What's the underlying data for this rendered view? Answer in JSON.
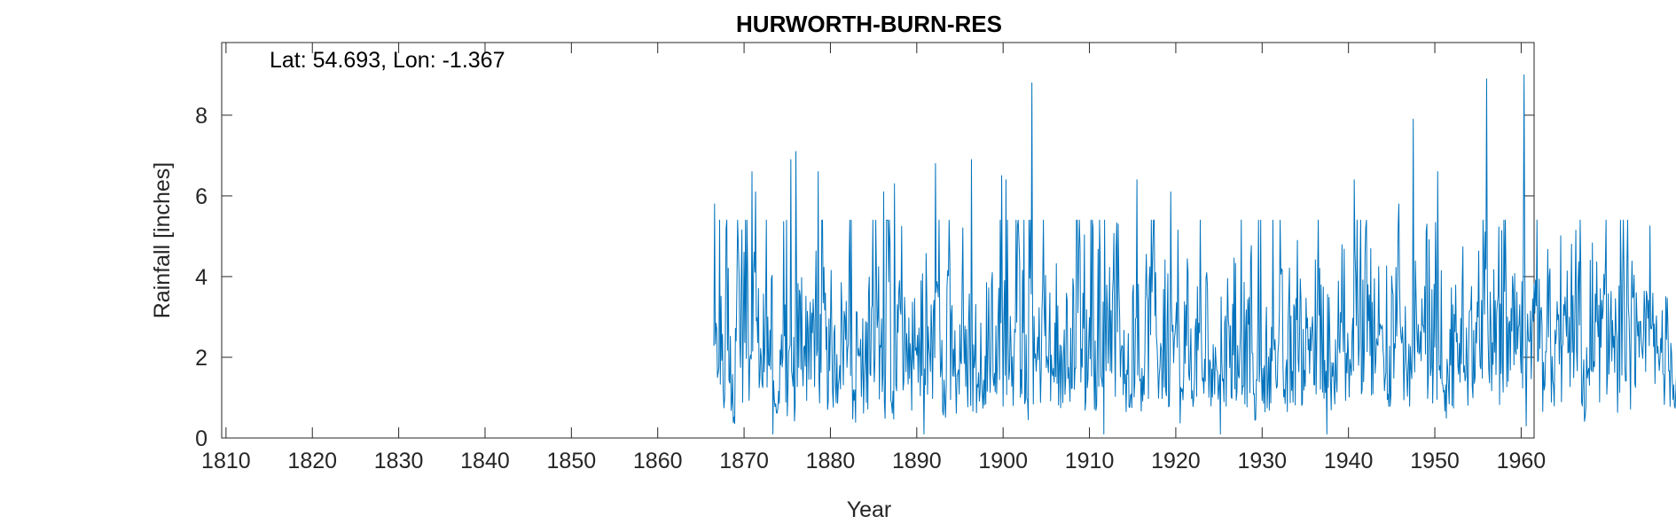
{
  "chart_data": {
    "type": "line",
    "title": "HURWORTH-BURN-RES",
    "annotation": "Lat: 54.693, Lon: -1.367",
    "xlabel": "Year",
    "ylabel": "Rainfall [inches]",
    "xlim": [
      1809.5,
      1961.5
    ],
    "ylim": [
      0,
      9.8
    ],
    "x_ticks": [
      1810,
      1820,
      1830,
      1840,
      1850,
      1860,
      1870,
      1880,
      1890,
      1900,
      1910,
      1920,
      1930,
      1940,
      1950,
      1960
    ],
    "x_tick_labels": [
      "1810",
      "1820",
      "1830",
      "1840",
      "1850",
      "1860",
      "1870",
      "1880",
      "1890",
      "1900",
      "1910",
      "1920",
      "1930",
      "1940",
      "1950",
      "1960"
    ],
    "y_ticks": [
      0,
      2,
      4,
      6,
      8
    ],
    "y_tick_labels": [
      "0",
      "2",
      "4",
      "6",
      "8"
    ],
    "grid": false,
    "line_color": "#0072BD",
    "series": [
      {
        "start_year": 1866.5,
        "step": 0.5,
        "x_units": "year",
        "values": [
          1.9,
          2.7,
          1.3,
          2.9,
          1.0,
          3.8,
          2.4,
          3.3,
          1.4,
          2.8,
          2.4,
          1.6,
          3.5,
          2.1,
          0.6,
          2.2,
          2.2,
          1.4,
          1.1,
          2.5,
          2.8,
          2.3,
          2.9,
          2.1,
          2.1,
          2.6,
          1.8,
          1.8,
          1.9,
          2.5,
          2.5,
          2.6,
          1.0,
          2.1,
          1.2,
          2.0,
          2.5,
          2.9,
          2.7,
          1.1,
          4.2,
          0.8,
          2.4,
          2.1,
          2.3,
          1.9,
          1.4,
          1.7,
          1.8,
          2.5,
          2.0,
          2.5,
          3.3,
          0.8,
          2.7,
          3.1,
          1.6,
          2.5,
          1.8,
          2.1,
          1.6,
          2.6,
          1.1,
          1.9,
          2.1,
          1.9,
          2.4,
          2.1,
          2.9,
          1.8,
          3.2,
          2.4,
          1.1,
          3.4,
          1.7,
          2.1,
          3.3,
          1.7,
          1.5,
          2.1,
          1.5,
          2.2,
          1.7,
          2.7,
          3.4,
          2.4,
          1.5,
          3.4,
          1.5,
          3.3,
          2.5,
          2.4,
          3.3,
          2.9,
          1.7,
          1.1,
          1.9,
          2.5,
          1.6,
          1.8,
          2.5,
          2.8,
          2.4,
          2.0,
          2.3,
          1.8,
          1.9,
          2.3,
          1.0,
          2.5,
          1.2,
          2.1,
          2.3,
          1.6,
          2.7,
          1.5,
          1.4,
          2.2,
          1.6,
          2.1,
          2.3,
          1.4,
          2.4,
          2.1,
          2.2,
          0.9,
          3.2,
          1.3,
          1.4,
          2.4,
          1.5,
          2.6,
          1.2,
          2.2,
          2.2,
          2.4,
          2.1,
          2.3,
          2.7,
          1.8,
          2.6,
          1.6,
          2.5,
          1.3,
          1.6,
          2.1,
          2.5,
          2.0,
          2.5,
          2.6,
          2.7,
          3.1,
          2.1,
          1.8,
          2.4,
          2.5,
          1.6,
          2.7,
          2.6,
          1.7,
          1.5,
          1.7,
          2.8,
          1.8,
          2.1,
          2.3,
          2.4,
          2.7,
          2.7,
          0.8,
          1.7,
          1.9,
          1.5,
          2.5,
          1.8,
          2.3,
          2.1,
          2.1,
          3.4,
          1.7,
          2.6,
          2.1,
          2.3,
          2.8,
          2.1,
          2.5,
          2.2,
          2.4,
          1.5,
          2.1,
          2.4,
          2.0,
          1.4,
          2.9,
          1.7,
          2.0,
          2.3,
          2.5,
          2.6,
          2.2,
          2.8,
          0.8,
          1.8,
          2.0,
          2.0,
          2.4,
          2.6,
          2.7,
          2.3,
          1.6,
          2.4,
          2.7,
          2.0,
          2.2,
          1.8,
          2.1,
          2.5,
          2.3,
          2.0,
          1.8,
          2.2,
          1.8,
          1.7,
          1.5,
          1.7,
          2.1,
          2.6,
          2.6,
          1.6,
          2.7,
          2.6,
          2.2,
          2.5,
          2.4,
          1.8,
          2.0,
          1.6,
          1.9,
          2.2,
          2.6,
          1.2,
          1.6,
          2.8,
          2.0,
          2.8,
          2.5,
          2.1,
          1.6,
          2.0,
          2.6,
          2.5,
          1.2,
          2.0,
          2.5,
          2.0,
          2.8,
          2.3,
          2.8,
          2.0,
          1.8,
          2.5,
          2.1,
          1.8,
          2.1,
          1.2,
          1.4,
          2.5,
          2.8,
          2.0,
          2.0,
          1.9,
          2.6,
          1.0,
          2.4,
          2.4,
          2.2,
          2.2,
          1.9,
          2.1,
          2.4,
          1.4,
          1.4,
          1.9,
          1.8,
          1.3,
          2.0,
          2.3,
          2.5,
          2.1,
          1.8,
          2.4,
          1.6,
          2.0,
          2.6,
          1.6,
          1.9,
          1.7,
          1.5,
          1.9,
          1.9,
          2.0,
          1.4,
          1.8,
          2.7,
          2.0,
          2.3,
          2.6,
          2.6,
          2.3,
          2.8,
          1.5,
          2.2,
          2.4,
          1.9,
          2.5,
          2.4,
          2.2,
          2.1,
          2.1,
          1.9,
          2.4
        ]
      }
    ],
    "extremes": [
      {
        "x": 1866.6,
        "y": 5.8
      },
      {
        "x": 1867.9,
        "y": 5.2
      },
      {
        "x": 1870.9,
        "y": 6.6
      },
      {
        "x": 1871.3,
        "y": 6.1
      },
      {
        "x": 1873.3,
        "y": 0.1
      },
      {
        "x": 1875.4,
        "y": 6.9
      },
      {
        "x": 1876.0,
        "y": 7.1
      },
      {
        "x": 1878.6,
        "y": 6.6
      },
      {
        "x": 1886.2,
        "y": 6.1
      },
      {
        "x": 1887.4,
        "y": 6.3
      },
      {
        "x": 1890.8,
        "y": 0.1
      },
      {
        "x": 1892.2,
        "y": 6.8
      },
      {
        "x": 1896.3,
        "y": 6.9
      },
      {
        "x": 1899.8,
        "y": 6.5
      },
      {
        "x": 1900.3,
        "y": 6.4
      },
      {
        "x": 1903.3,
        "y": 8.8
      },
      {
        "x": 1911.7,
        "y": 0.1
      },
      {
        "x": 1915.5,
        "y": 6.4
      },
      {
        "x": 1919.4,
        "y": 6.1
      },
      {
        "x": 1925.2,
        "y": 0.1
      },
      {
        "x": 1937.5,
        "y": 0.1
      },
      {
        "x": 1940.7,
        "y": 6.4
      },
      {
        "x": 1945.8,
        "y": 5.8
      },
      {
        "x": 1947.5,
        "y": 7.9
      },
      {
        "x": 1950.3,
        "y": 6.6
      },
      {
        "x": 1956.0,
        "y": 8.9
      },
      {
        "x": 1960.3,
        "y": 9.0
      },
      {
        "x": 1960.6,
        "y": 0.3
      }
    ]
  }
}
